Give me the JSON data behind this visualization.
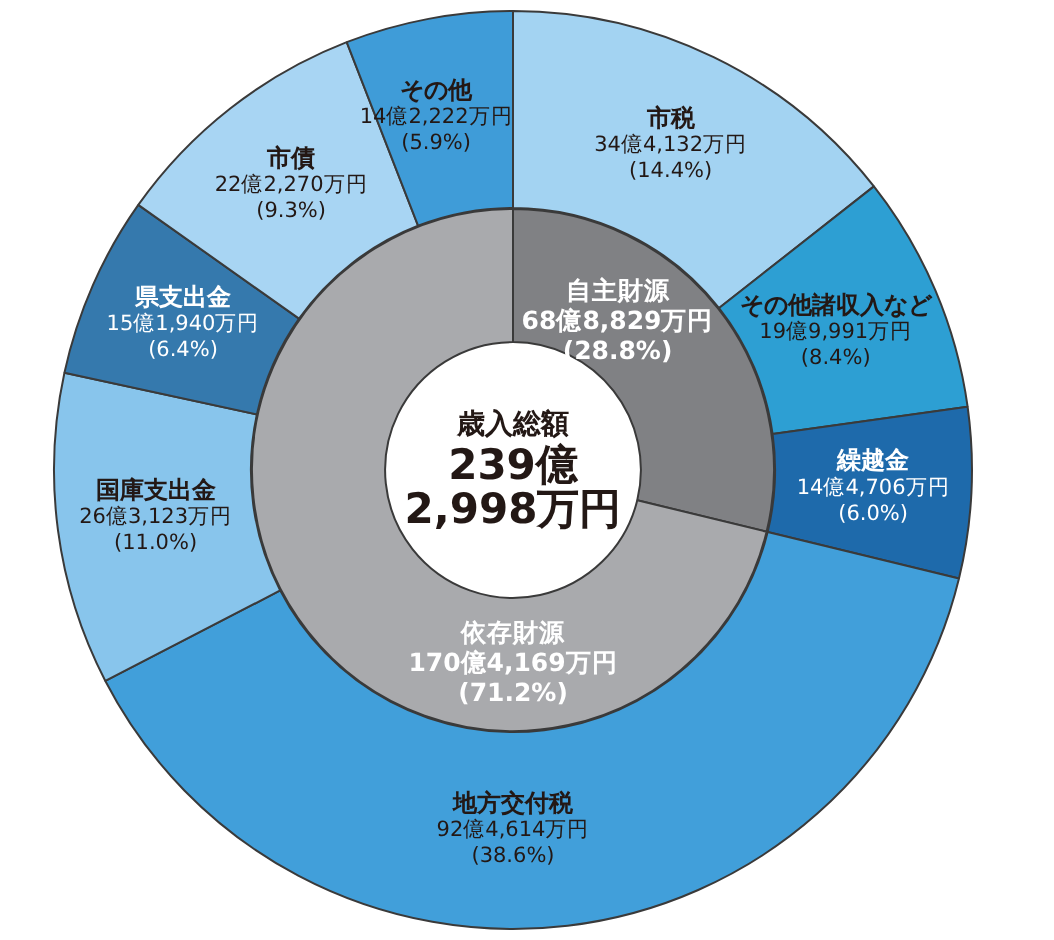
{
  "chart_data": [
    {
      "type": "donut",
      "categories": [
        "市税",
        "その他諸収入など",
        "繰越金",
        "地方交付税",
        "国庫支出金",
        "県支出金",
        "市債",
        "その他"
      ],
      "values": [
        14.4,
        8.4,
        6.0,
        38.6,
        11.0,
        6.4,
        9.3,
        5.9
      ],
      "colors": [
        "#a3d3f2",
        "#2d9fd3",
        "#1e6aab",
        "#419fda",
        "#88c5ec",
        "#3579ad",
        "#a8d5f3",
        "#3f9cd8"
      ],
      "value_labels": [
        "34億4,132万円\n(14.4%)",
        "19億9,991万円\n(8.4%)",
        "14億4,706万円\n(6.0%)",
        "92億4,614万円\n(38.6%)",
        "26億3,123万円\n(11.0%)",
        "15億1,940万円\n(6.4%)",
        "22億2,270万円\n(9.3%)",
        "14億2,222万円\n(5.9%)"
      ]
    },
    {
      "type": "donut",
      "categories": [
        "自主財源",
        "依存財源"
      ],
      "values": [
        28.8,
        71.2
      ],
      "colors": [
        "#808184",
        "#a9aaad"
      ],
      "value_labels": [
        "68億8,829万円\n(28.8%)",
        "170億4,169万円\n(71.2%)"
      ],
      "annotations": [
        "歳入総額\n239億\n2,998万円"
      ]
    }
  ]
}
